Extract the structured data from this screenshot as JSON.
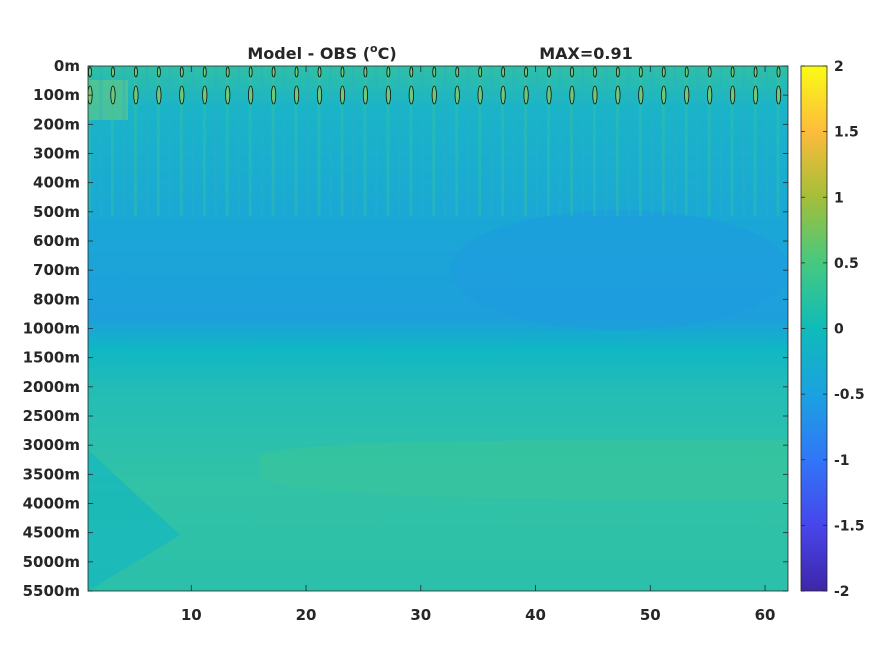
{
  "chart_data": {
    "type": "heatmap",
    "title": "Model - OBS (",
    "title_super": "o",
    "title_suffix": "C)",
    "max_label": "MAX=0.91",
    "xlim": [
      1,
      62
    ],
    "x_ticks": [
      10,
      20,
      30,
      40,
      50,
      60
    ],
    "y_tick_labels": [
      "0m",
      "100m",
      "200m",
      "300m",
      "400m",
      "500m",
      "600m",
      "700m",
      "800m",
      "1000m",
      "1500m",
      "2000m",
      "2500m",
      "3000m",
      "3500m",
      "4000m",
      "4500m",
      "5000m",
      "5500m"
    ],
    "clim": [
      -2,
      2
    ],
    "colorbar_ticks": [
      "2",
      "1.5",
      "1",
      "0.5",
      "0",
      "-0.5",
      "-1",
      "-1.5",
      "-2"
    ],
    "colormap": "parula",
    "grid": false
  }
}
